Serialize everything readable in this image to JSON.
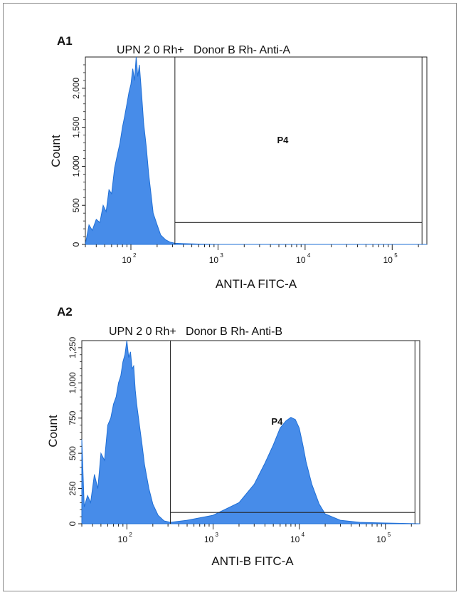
{
  "chart_data": [
    {
      "type": "area",
      "panel": "A1",
      "title": "UPN 2 0 Rh+   Donor B Rh- Anti-A",
      "xlabel": "ANTI-A FITC-A",
      "ylabel": "Count",
      "xscale": "log",
      "xlim": [
        30,
        250000
      ],
      "ylim": [
        0,
        2400
      ],
      "yticks": [
        0,
        500,
        1000,
        1500,
        2000
      ],
      "ytick_labels": [
        "0",
        "500",
        "1,000",
        "1,500",
        "2,000"
      ],
      "xticks": [
        100,
        1000,
        10000,
        100000
      ],
      "xtick_labels": [
        {
          "base": "10",
          "exp": "2"
        },
        {
          "base": "10",
          "exp": "3"
        },
        {
          "base": "10",
          "exp": "4"
        },
        {
          "base": "10",
          "exp": "5"
        }
      ],
      "gate": {
        "label": "P4",
        "x_range": [
          320,
          220000
        ],
        "y_level": 280
      },
      "series": [
        {
          "color": "#3d86e8",
          "x": [
            30,
            33,
            36,
            40,
            44,
            48,
            52,
            56,
            60,
            65,
            70,
            75,
            80,
            85,
            90,
            95,
            100,
            105,
            110,
            115,
            120,
            125,
            130,
            135,
            140,
            150,
            160,
            170,
            180,
            200,
            220,
            250,
            280,
            320,
            400,
            600,
            1000,
            10000,
            100000,
            250000
          ],
          "y": [
            0,
            250,
            180,
            320,
            280,
            500,
            420,
            700,
            650,
            980,
            1150,
            1300,
            1500,
            1650,
            1800,
            1950,
            2050,
            2250,
            2100,
            2400,
            2150,
            2300,
            2050,
            1800,
            1550,
            1250,
            900,
            650,
            400,
            250,
            120,
            60,
            30,
            15,
            10,
            5,
            0,
            0,
            0,
            0
          ]
        }
      ]
    },
    {
      "type": "area",
      "panel": "A2",
      "title": "UPN 2 0 Rh+   Donor B Rh- Anti-B",
      "xlabel": "ANTI-B FITC-A",
      "ylabel": "Count",
      "xscale": "log",
      "xlim": [
        30,
        250000
      ],
      "ylim": [
        0,
        1300
      ],
      "yticks": [
        0,
        250,
        500,
        750,
        1000,
        1250
      ],
      "ytick_labels": [
        "0",
        "250",
        "500",
        "750",
        "1,000",
        "1,250"
      ],
      "xticks": [
        100,
        1000,
        10000,
        100000
      ],
      "xtick_labels": [
        {
          "base": "10",
          "exp": "2"
        },
        {
          "base": "10",
          "exp": "3"
        },
        {
          "base": "10",
          "exp": "4"
        },
        {
          "base": "10",
          "exp": "5"
        }
      ],
      "gate": {
        "label": "P4",
        "x_range": [
          320,
          220000
        ],
        "y_level": 80
      },
      "series": [
        {
          "color": "#3d86e8",
          "x": [
            30,
            32,
            35,
            38,
            42,
            46,
            50,
            55,
            60,
            65,
            70,
            75,
            80,
            85,
            90,
            95,
            100,
            105,
            110,
            115,
            120,
            125,
            130,
            140,
            150,
            160,
            180,
            200,
            230,
            270,
            320,
            500,
            1000,
            2000,
            3000,
            4000,
            5000,
            6000,
            7000,
            8000,
            9000,
            10000,
            11000,
            12000,
            14000,
            17000,
            20000,
            30000,
            50000,
            100000,
            250000
          ],
          "y": [
            600,
            120,
            200,
            150,
            350,
            250,
            500,
            450,
            700,
            750,
            850,
            900,
            1000,
            1050,
            1150,
            1200,
            1300,
            1180,
            1220,
            1100,
            1120,
            950,
            850,
            700,
            560,
            420,
            250,
            140,
            60,
            20,
            10,
            25,
            60,
            150,
            280,
            430,
            560,
            680,
            730,
            755,
            740,
            680,
            560,
            440,
            280,
            140,
            70,
            25,
            10,
            5,
            0
          ]
        }
      ]
    }
  ]
}
